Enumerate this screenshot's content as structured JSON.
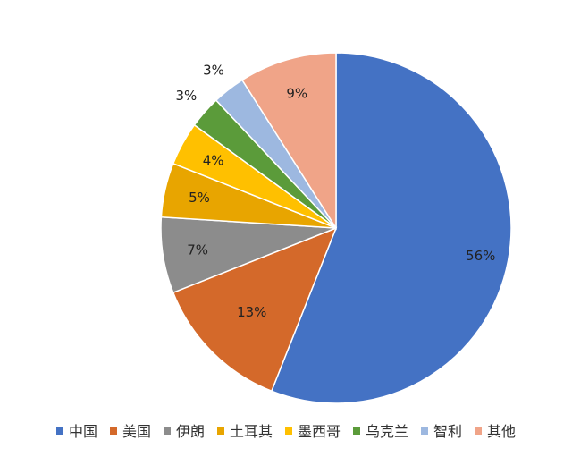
{
  "chart_data": {
    "type": "pie",
    "categories": [
      "中国",
      "美国",
      "伊朗",
      "土耳其",
      "墨西哥",
      "乌克兰",
      "智利",
      "其他"
    ],
    "values": [
      56,
      13,
      7,
      5,
      4,
      3,
      3,
      9
    ],
    "labels": [
      "56%",
      "13%",
      "7%",
      "5%",
      "4%",
      "3%",
      "3%",
      "9%"
    ],
    "colors": [
      "#4472C4",
      "#D4692A",
      "#8C8C8C",
      "#E8A500",
      "#FFC000",
      "#5B9B3A",
      "#9DB8E0",
      "#F0A488"
    ],
    "legend_position": "bottom"
  }
}
